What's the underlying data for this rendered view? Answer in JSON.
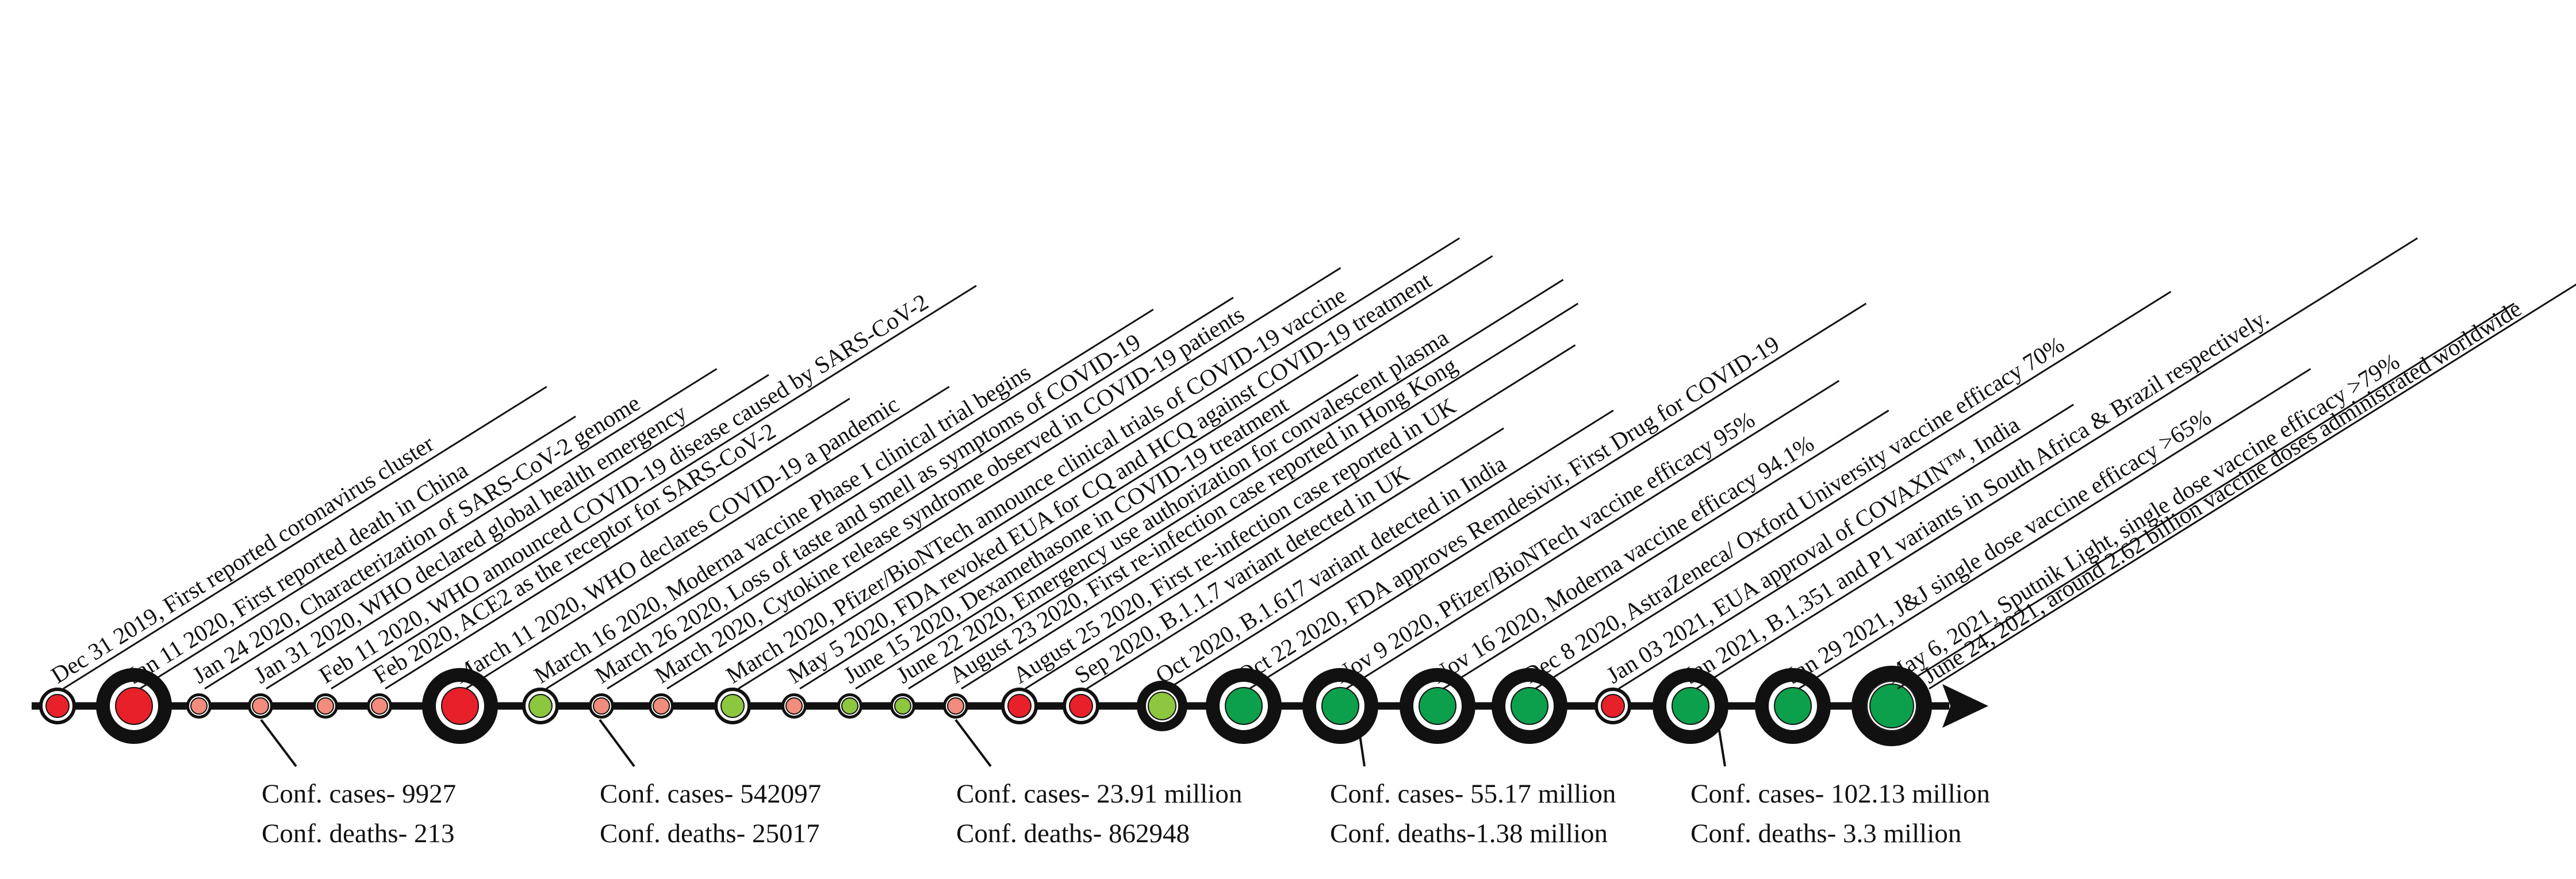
{
  "colors": {
    "red": "#e8202a",
    "light_red": "#f28c7c",
    "green": "#0ca04c",
    "light_green": "#8dc63f",
    "ink": "#111111",
    "paper": "#ffffff"
  },
  "events": [
    {
      "label": "Dec 31 2019, First reported coronavirus cluster",
      "marker": "medium",
      "color": "red"
    },
    {
      "label": "Jan 11 2020, First reported death in China",
      "marker": "large",
      "color": "red"
    },
    {
      "label": "Jan 24 2020, Characterization of SARS-CoV-2 genome",
      "marker": "small",
      "color": "light_red"
    },
    {
      "label": "Jan 31 2020, WHO declared global health emergency",
      "marker": "small",
      "color": "light_red"
    },
    {
      "label": "Feb 11 2020, WHO announced COVID-19 disease caused by SARS-CoV-2",
      "marker": "small",
      "color": "light_red"
    },
    {
      "label": "Feb 2020, ACE2 as the receptor for SARS-CoV-2",
      "marker": "small",
      "color": "light_red"
    },
    {
      "label": "March 11 2020, WHO declares COVID-19 a pandemic",
      "marker": "large",
      "color": "red"
    },
    {
      "label": "March 16 2020, Moderna vaccine Phase I clinical trial begins",
      "marker": "medium",
      "color": "light_green"
    },
    {
      "label": "March 26 2020, Loss of taste and smell as symptoms of COVID-19",
      "marker": "small",
      "color": "light_red"
    },
    {
      "label": "March 2020, Cytokine release syndrome observed in COVID-19 patients",
      "marker": "small",
      "color": "light_red"
    },
    {
      "label": "March 2020, Pfizer/BioNTech announce clinical trials of COVID-19 vaccine",
      "marker": "medium",
      "color": "light_green"
    },
    {
      "label": "May 5 2020, FDA revoked EUA for CQ and HCQ against COVID-19 treatment",
      "marker": "small",
      "color": "light_red"
    },
    {
      "label": "June 15 2020, Dexamethasone in COVID-19 treatment",
      "marker": "small",
      "color": "light_green"
    },
    {
      "label": "June 22 2020, Emergency use authorization for convalescent plasma",
      "marker": "small",
      "color": "light_green"
    },
    {
      "label": "August 23 2020, First re-infection case reported in Hong Kong",
      "marker": "small",
      "color": "light_red"
    },
    {
      "label": "August 25 2020, First re-infection case reported in UK",
      "marker": "medium",
      "color": "red"
    },
    {
      "label": "Sep 2020, B.1.1.7 variant detected in UK",
      "marker": "medium",
      "color": "red"
    },
    {
      "label": "Oct 2020, B.1.617 variant detected in India",
      "marker": "thick",
      "color": "light_green"
    },
    {
      "label": "Oct 22 2020, FDA approves Remdesivir, First Drug for COVID-19",
      "marker": "large",
      "color": "green"
    },
    {
      "label": "Nov 9 2020, Pfizer/BioNTech vaccine efficacy 95%",
      "marker": "large",
      "color": "green"
    },
    {
      "label": "Nov 16 2020, Moderna vaccine efficacy 94.1%",
      "marker": "large",
      "color": "green"
    },
    {
      "label": "Dec 8 2020, AstraZeneca/ Oxford University vaccine efficacy 70%",
      "marker": "large",
      "color": "green"
    },
    {
      "label": "Jan 03 2021, EUA approval of COVAXIN™, India",
      "marker": "medium",
      "color": "red"
    },
    {
      "label": "Jan 2021, B.1.351 and P1 variants in South Africa & Brazil respectively.",
      "marker": "large",
      "color": "green"
    },
    {
      "label": "Jan 29 2021, J&J single dose vaccine efficacy >65%",
      "marker": "large",
      "color": "green"
    },
    {
      "label": "May 6, 2021, Sputnik Light, single dose vaccine efficacy >79%",
      "marker": "xlarge",
      "color": "green"
    },
    {
      "label": "June 24, 2021, around 2.62 billion vaccine doses administrated worldwide",
      "marker": "none",
      "color": "green"
    }
  ],
  "stats": [
    {
      "after_event": 3,
      "cases": "Conf. cases- 9927",
      "deaths": "Conf. deaths- 213"
    },
    {
      "after_event": 8,
      "cases": "Conf. cases- 542097",
      "deaths": "Conf. deaths- 25017"
    },
    {
      "after_event": 14,
      "cases": "Conf. cases- 23.91 million",
      "deaths": "Conf. deaths- 862948"
    },
    {
      "after_event": 19,
      "cases": "Conf. cases- 55.17 million",
      "deaths": "Conf. deaths-1.38 million"
    },
    {
      "after_event": 23,
      "cases": "Conf. cases- 102.13 million",
      "deaths": "Conf. deaths- 3.3 million"
    }
  ]
}
